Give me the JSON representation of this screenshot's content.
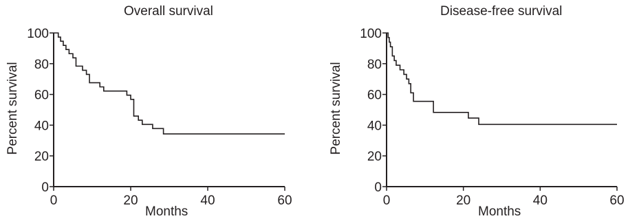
{
  "chart_data": [
    {
      "type": "line",
      "title": "Overall survival",
      "xlabel": "Months",
      "ylabel": "Percent survival",
      "xlim": [
        0,
        60
      ],
      "ylim": [
        0,
        100
      ],
      "xticks": [
        "0",
        "20",
        "40",
        "60"
      ],
      "yticks": [
        "0",
        "20",
        "40",
        "60",
        "80",
        "100"
      ],
      "grid": false,
      "series": [
        {
          "x": [
            0,
            1.2,
            1.8,
            2.5,
            3.2,
            4,
            5,
            5.8,
            7.5,
            8.5,
            9.3,
            12,
            13,
            19,
            20,
            20.8,
            22,
            23,
            25,
            25.7,
            28.5,
            60
          ],
          "y": [
            100,
            97.3,
            94.6,
            91.9,
            89.2,
            86.5,
            83.8,
            78.4,
            75.7,
            73,
            67.6,
            64.9,
            62.2,
            59.5,
            56.8,
            45.9,
            43.2,
            40.5,
            40.5,
            37.8,
            34.3,
            34.3
          ]
        }
      ]
    },
    {
      "type": "line",
      "title": "Disease-free survival",
      "xlabel": "Months",
      "ylabel": "Percent survival",
      "xlim": [
        0,
        60
      ],
      "ylim": [
        0,
        100
      ],
      "xticks": [
        "0",
        "20",
        "40",
        "60"
      ],
      "yticks": [
        "0",
        "20",
        "40",
        "60",
        "80",
        "100"
      ],
      "grid": false,
      "series": [
        {
          "x": [
            0,
            0.4,
            0.7,
            1,
            1.5,
            2,
            2.5,
            3.5,
            4.5,
            5.2,
            5.8,
            6.3,
            7,
            12,
            12.2,
            21,
            21.3,
            24,
            60
          ],
          "y": [
            100,
            97,
            94,
            91,
            85,
            82,
            79,
            76,
            73,
            70,
            67,
            61,
            55.5,
            55.5,
            48.3,
            48.3,
            44.6,
            40.5,
            40.5
          ]
        }
      ]
    }
  ]
}
